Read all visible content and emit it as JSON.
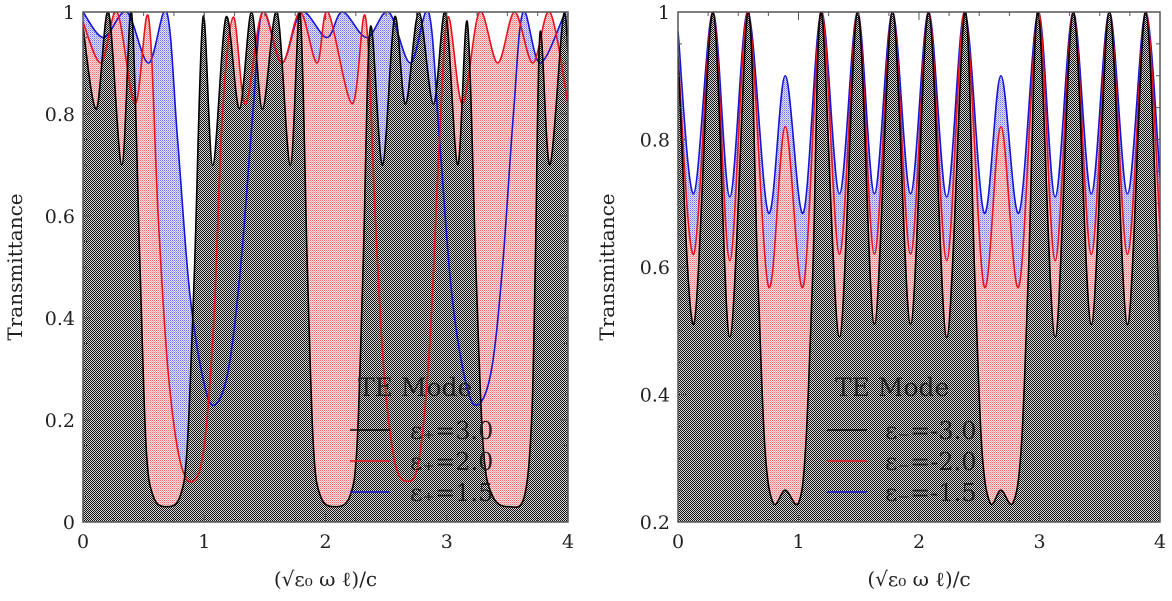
{
  "chart_data": [
    {
      "type": "area",
      "xlabel": "(√ε₀ ω ℓ)/c",
      "ylabel": "Transmittance",
      "xlim": [
        0,
        4
      ],
      "ylim": [
        0,
        1
      ],
      "xticks": [
        "0",
        "1",
        "2",
        "3",
        "4"
      ],
      "yticks": [
        "0",
        "0.2",
        "0.4",
        "0.6",
        "0.8",
        "1"
      ],
      "xtick_values": [
        0,
        1,
        2,
        3,
        4
      ],
      "ytick_values": [
        0,
        0.2,
        0.4,
        0.6,
        0.8,
        1
      ],
      "legend_title": "TE Mode",
      "legend_position": "bottom-right",
      "series": [
        {
          "name": "ε₊=3.0",
          "color": "#000000",
          "points": [
            [
              0,
              0.97
            ],
            [
              0.11,
              0.81
            ],
            [
              0.21,
              1
            ],
            [
              0.32,
              0.7
            ],
            [
              0.4,
              1
            ],
            [
              0.47,
              0.5
            ],
            [
              0.52,
              0.15
            ],
            [
              0.58,
              0.05
            ],
            [
              0.69,
              0.03
            ],
            [
              0.8,
              0.05
            ],
            [
              0.86,
              0.15
            ],
            [
              0.92,
              0.5
            ],
            [
              0.99,
              0.99
            ],
            [
              1.07,
              0.7
            ],
            [
              1.18,
              0.99
            ],
            [
              1.29,
              0.81
            ],
            [
              1.39,
              1
            ],
            [
              1.48,
              0.81
            ],
            [
              1.6,
              1
            ],
            [
              1.71,
              0.7
            ],
            [
              1.79,
              1
            ],
            [
              1.85,
              0.5
            ],
            [
              1.9,
              0.15
            ],
            [
              1.96,
              0.05
            ],
            [
              2.08,
              0.03
            ],
            [
              2.2,
              0.05
            ],
            [
              2.26,
              0.15
            ],
            [
              2.31,
              0.5
            ],
            [
              2.37,
              0.97
            ],
            [
              2.47,
              0.7
            ],
            [
              2.57,
              0.99
            ],
            [
              2.66,
              0.82
            ],
            [
              2.77,
              1
            ],
            [
              2.89,
              0.82
            ],
            [
              2.99,
              1
            ],
            [
              3.09,
              0.7
            ],
            [
              3.17,
              0.98
            ],
            [
              3.24,
              0.5
            ],
            [
              3.3,
              0.15
            ],
            [
              3.38,
              0.05
            ],
            [
              3.52,
              0.03
            ],
            [
              3.64,
              0.05
            ],
            [
              3.7,
              0.2
            ],
            [
              3.73,
              0.5
            ],
            [
              3.77,
              0.96
            ],
            [
              3.85,
              0.7
            ],
            [
              3.96,
              0.99
            ],
            [
              4.0,
              0.92
            ]
          ]
        },
        {
          "name": "ε₊=2.0",
          "color": "#e8131b",
          "points": [
            [
              0,
              0.98
            ],
            [
              0.15,
              0.9
            ],
            [
              0.28,
              1
            ],
            [
              0.43,
              0.82
            ],
            [
              0.54,
              0.99
            ],
            [
              0.62,
              0.6
            ],
            [
              0.7,
              0.3
            ],
            [
              0.8,
              0.12
            ],
            [
              0.91,
              0.08
            ],
            [
              1.0,
              0.15
            ],
            [
              1.08,
              0.4
            ],
            [
              1.15,
              0.8
            ],
            [
              1.24,
              0.99
            ],
            [
              1.34,
              0.82
            ],
            [
              1.48,
              1
            ],
            [
              1.64,
              0.9
            ],
            [
              1.79,
              1
            ],
            [
              1.93,
              0.9
            ],
            [
              2.02,
              1
            ],
            [
              2.22,
              0.82
            ],
            [
              2.33,
              0.99
            ],
            [
              2.41,
              0.6
            ],
            [
              2.48,
              0.3
            ],
            [
              2.57,
              0.12
            ],
            [
              2.67,
              0.08
            ],
            [
              2.77,
              0.12
            ],
            [
              2.86,
              0.35
            ],
            [
              2.94,
              0.75
            ],
            [
              3.01,
              0.99
            ],
            [
              3.13,
              0.82
            ],
            [
              3.27,
              1
            ],
            [
              3.42,
              0.9
            ],
            [
              3.56,
              1
            ],
            [
              3.71,
              0.9
            ],
            [
              3.85,
              1
            ],
            [
              4.0,
              0.82
            ]
          ]
        },
        {
          "name": "ε₊=1.5",
          "color": "#1515d8",
          "points": [
            [
              0,
              1
            ],
            [
              0.17,
              0.95
            ],
            [
              0.36,
              1
            ],
            [
              0.54,
              0.9
            ],
            [
              0.69,
              1
            ],
            [
              0.78,
              0.75
            ],
            [
              0.88,
              0.45
            ],
            [
              1.0,
              0.27
            ],
            [
              1.09,
              0.23
            ],
            [
              1.2,
              0.3
            ],
            [
              1.3,
              0.5
            ],
            [
              1.4,
              0.8
            ],
            [
              1.48,
              1
            ],
            [
              1.64,
              0.9
            ],
            [
              1.8,
              1
            ],
            [
              2.01,
              0.95
            ],
            [
              2.14,
              1
            ],
            [
              2.34,
              0.95
            ],
            [
              2.52,
              1
            ],
            [
              2.7,
              0.9
            ],
            [
              2.85,
              1
            ],
            [
              2.94,
              0.75
            ],
            [
              3.04,
              0.45
            ],
            [
              3.16,
              0.27
            ],
            [
              3.26,
              0.23
            ],
            [
              3.37,
              0.3
            ],
            [
              3.46,
              0.5
            ],
            [
              3.55,
              0.8
            ],
            [
              3.63,
              1
            ],
            [
              3.77,
              0.9
            ],
            [
              3.98,
              1
            ],
            [
              4.0,
              0.99
            ]
          ]
        }
      ]
    },
    {
      "type": "area",
      "xlabel": "(√ε₀ ω ℓ)/c",
      "ylabel": "Transmittance",
      "xlim": [
        0,
        4
      ],
      "ylim": [
        0.2,
        1
      ],
      "xticks": [
        "0",
        "1",
        "2",
        "3",
        "4"
      ],
      "yticks": [
        "0.2",
        "0.4",
        "0.6",
        "0.8",
        "1"
      ],
      "xtick_values": [
        0,
        1,
        2,
        3,
        4
      ],
      "ytick_values": [
        0.2,
        0.4,
        0.6,
        0.8,
        1
      ],
      "legend_title": "TE Mode",
      "legend_position": "bottom-center",
      "series": [
        {
          "name": "ε₋=-3.0",
          "color": "#000000",
          "points": [
            [
              0,
              0.93
            ],
            [
              0.13,
              0.51
            ],
            [
              0.29,
              1
            ],
            [
              0.43,
              0.49
            ],
            [
              0.58,
              1
            ],
            [
              0.66,
              0.6
            ],
            [
              0.72,
              0.32
            ],
            [
              0.79,
              0.23
            ],
            [
              0.89,
              0.25
            ],
            [
              1.0,
              0.23
            ],
            [
              1.06,
              0.32
            ],
            [
              1.12,
              0.6
            ],
            [
              1.19,
              1
            ],
            [
              1.34,
              0.49
            ],
            [
              1.49,
              1
            ],
            [
              1.63,
              0.51
            ],
            [
              1.78,
              1
            ],
            [
              1.93,
              0.51
            ],
            [
              2.08,
              1
            ],
            [
              2.23,
              0.49
            ],
            [
              2.38,
              1
            ],
            [
              2.46,
              0.6
            ],
            [
              2.52,
              0.32
            ],
            [
              2.59,
              0.23
            ],
            [
              2.68,
              0.25
            ],
            [
              2.78,
              0.23
            ],
            [
              2.85,
              0.32
            ],
            [
              2.91,
              0.6
            ],
            [
              2.99,
              1
            ],
            [
              3.13,
              0.49
            ],
            [
              3.28,
              1
            ],
            [
              3.43,
              0.51
            ],
            [
              3.58,
              1
            ],
            [
              3.73,
              0.51
            ],
            [
              3.88,
              1
            ],
            [
              4.0,
              0.5
            ]
          ]
        },
        {
          "name": "ε₋=-2.0",
          "color": "#e8131b",
          "points": [
            [
              0,
              0.93
            ],
            [
              0.13,
              0.62
            ],
            [
              0.29,
              1
            ],
            [
              0.43,
              0.61
            ],
            [
              0.58,
              1
            ],
            [
              0.75,
              0.57
            ],
            [
              0.89,
              0.82
            ],
            [
              1.04,
              0.57
            ],
            [
              1.19,
              1
            ],
            [
              1.34,
              0.62
            ],
            [
              1.49,
              1
            ],
            [
              1.63,
              0.62
            ],
            [
              1.78,
              1
            ],
            [
              1.93,
              0.62
            ],
            [
              2.08,
              1
            ],
            [
              2.23,
              0.61
            ],
            [
              2.38,
              1
            ],
            [
              2.54,
              0.57
            ],
            [
              2.68,
              0.82
            ],
            [
              2.83,
              0.57
            ],
            [
              2.99,
              1
            ],
            [
              3.13,
              0.61
            ],
            [
              3.28,
              1
            ],
            [
              3.43,
              0.62
            ],
            [
              3.58,
              1
            ],
            [
              3.73,
              0.62
            ],
            [
              3.88,
              1
            ],
            [
              4.0,
              0.66
            ]
          ]
        },
        {
          "name": "ε₋=-1.5",
          "color": "#1515d8",
          "points": [
            [
              0,
              0.97
            ],
            [
              0.13,
              0.715
            ],
            [
              0.29,
              1
            ],
            [
              0.43,
              0.71
            ],
            [
              0.58,
              1
            ],
            [
              0.75,
              0.685
            ],
            [
              0.89,
              0.9
            ],
            [
              1.04,
              0.685
            ],
            [
              1.19,
              1
            ],
            [
              1.34,
              0.715
            ],
            [
              1.49,
              1
            ],
            [
              1.63,
              0.715
            ],
            [
              1.78,
              1
            ],
            [
              1.93,
              0.715
            ],
            [
              2.08,
              1
            ],
            [
              2.23,
              0.71
            ],
            [
              2.38,
              1
            ],
            [
              2.54,
              0.685
            ],
            [
              2.68,
              0.9
            ],
            [
              2.83,
              0.685
            ],
            [
              2.99,
              1
            ],
            [
              3.13,
              0.71
            ],
            [
              3.28,
              1
            ],
            [
              3.43,
              0.715
            ],
            [
              3.58,
              1
            ],
            [
              3.73,
              0.715
            ],
            [
              3.88,
              1
            ],
            [
              4.0,
              0.74
            ]
          ]
        }
      ]
    }
  ]
}
